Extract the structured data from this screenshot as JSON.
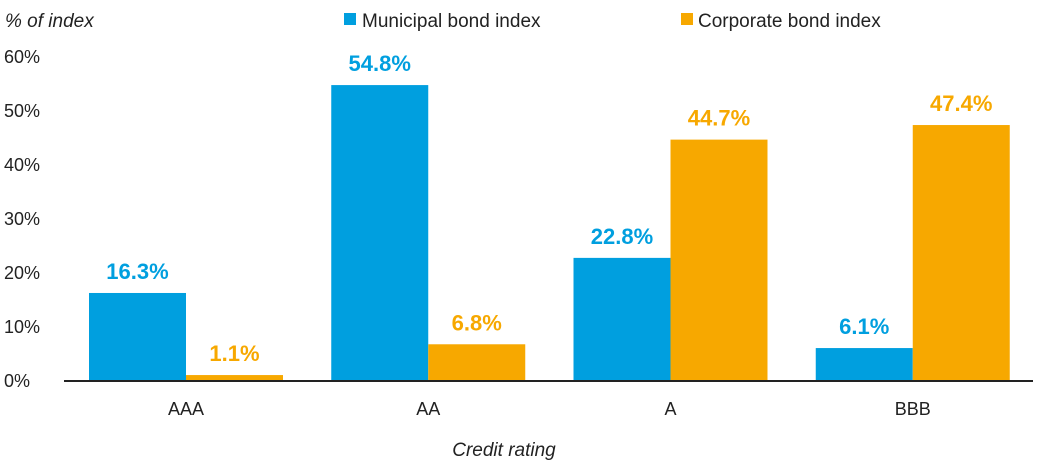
{
  "chart_data": {
    "type": "bar",
    "categories": [
      "AAA",
      "AA",
      "A",
      "BBB"
    ],
    "series": [
      {
        "name": "Municipal bond index",
        "values": [
          16.3,
          54.8,
          22.8,
          6.1
        ],
        "labels": [
          "16.3%",
          "54.8%",
          "22.8%",
          "6.1%"
        ],
        "color": "#009FDF"
      },
      {
        "name": "Corporate bond index",
        "values": [
          1.1,
          6.8,
          44.7,
          47.4
        ],
        "labels": [
          "1.1%",
          "6.8%",
          "44.7%",
          "47.4%"
        ],
        "color": "#F7A800"
      }
    ],
    "ylabel": "% of index",
    "xlabel": "Credit rating",
    "ylim": [
      0,
      60
    ],
    "yticks": [
      {
        "value": 0,
        "label": "0%"
      },
      {
        "value": 10,
        "label": "10%"
      },
      {
        "value": 20,
        "label": "20%"
      },
      {
        "value": 30,
        "label": "30%"
      },
      {
        "value": 40,
        "label": "40%"
      },
      {
        "value": 50,
        "label": "50%"
      },
      {
        "value": 60,
        "label": "60%"
      }
    ],
    "grid": false,
    "legend_position": "top-center"
  }
}
